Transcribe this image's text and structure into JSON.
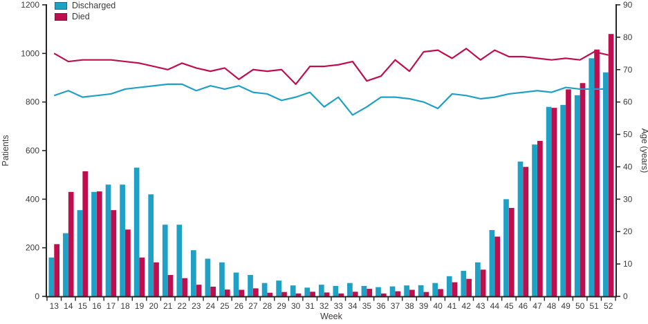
{
  "chart_data": {
    "type": "bar+line",
    "title": "",
    "xlabel": "Week",
    "ylabel_left": "Patients",
    "ylabel_right": "Age (years)",
    "left_axis": {
      "min": 0,
      "max": 1200,
      "ticks": [
        0,
        200,
        400,
        600,
        800,
        1000,
        1200
      ]
    },
    "right_axis": {
      "min": 0,
      "max": 90,
      "ticks": [
        0,
        10,
        20,
        30,
        40,
        50,
        60,
        70,
        80,
        90
      ]
    },
    "weeks": [
      13,
      14,
      15,
      16,
      17,
      18,
      19,
      20,
      21,
      22,
      23,
      24,
      25,
      26,
      27,
      28,
      29,
      30,
      31,
      32,
      33,
      34,
      35,
      36,
      37,
      38,
      39,
      40,
      41,
      42,
      43,
      44,
      45,
      46,
      47,
      48,
      49,
      50,
      51,
      52
    ],
    "legend": [
      {
        "label": "Discharged",
        "color": "#1fa0c5"
      },
      {
        "label": "Died",
        "color": "#bf0e4d"
      }
    ],
    "series": [
      {
        "name": "Discharged (patients, bars)",
        "axis": "left",
        "kind": "bar",
        "values": [
          160,
          260,
          355,
          430,
          460,
          460,
          530,
          420,
          295,
          295,
          190,
          155,
          140,
          98,
          88,
          55,
          65,
          45,
          36,
          48,
          43,
          55,
          43,
          38,
          41,
          45,
          46,
          55,
          83,
          105,
          140,
          273,
          400,
          555,
          625,
          780,
          788,
          828,
          980,
          922
        ]
      },
      {
        "name": "Died (patients, bars)",
        "axis": "left",
        "kind": "bar",
        "values": [
          215,
          430,
          515,
          432,
          355,
          275,
          160,
          140,
          88,
          75,
          48,
          40,
          28,
          27,
          33,
          15,
          18,
          12,
          19,
          16,
          12,
          19,
          31,
          12,
          21,
          27,
          18,
          30,
          58,
          72,
          110,
          246,
          364,
          533,
          640,
          776,
          852,
          878,
          1016,
          1080
        ]
      },
      {
        "name": "Discharged (mean age, line)",
        "axis": "right",
        "kind": "line",
        "values": [
          62,
          63.5,
          61.5,
          62,
          62.5,
          64,
          64.5,
          65,
          65.5,
          65.5,
          63.5,
          65,
          64,
          65,
          63,
          62.5,
          60.5,
          61.5,
          63,
          58.5,
          61.5,
          56,
          58.5,
          61.5,
          61.5,
          61,
          60,
          58,
          62.5,
          62,
          61,
          61.5,
          62.5,
          63,
          63.5,
          63,
          64.5,
          64,
          64,
          64
        ]
      },
      {
        "name": "Died (mean age, line)",
        "axis": "right",
        "kind": "line",
        "values": [
          75,
          72.5,
          73,
          73,
          73,
          72.5,
          72,
          71,
          70,
          72,
          70.5,
          69.5,
          70.5,
          67,
          70,
          69.5,
          70,
          65.5,
          71,
          71,
          71.5,
          72.5,
          66.5,
          68,
          73,
          69.5,
          75.5,
          76,
          73.5,
          76.5,
          73,
          76,
          74,
          74,
          73.5,
          73,
          73.5,
          73,
          75.5,
          74.5
        ]
      }
    ],
    "colors": {
      "discharged": "#1fa0c5",
      "died": "#bf0e4d",
      "axis": "#282424",
      "text": "#3c3a39"
    },
    "layout_hints": {
      "legend_position": "top-left",
      "grid": "off"
    }
  }
}
